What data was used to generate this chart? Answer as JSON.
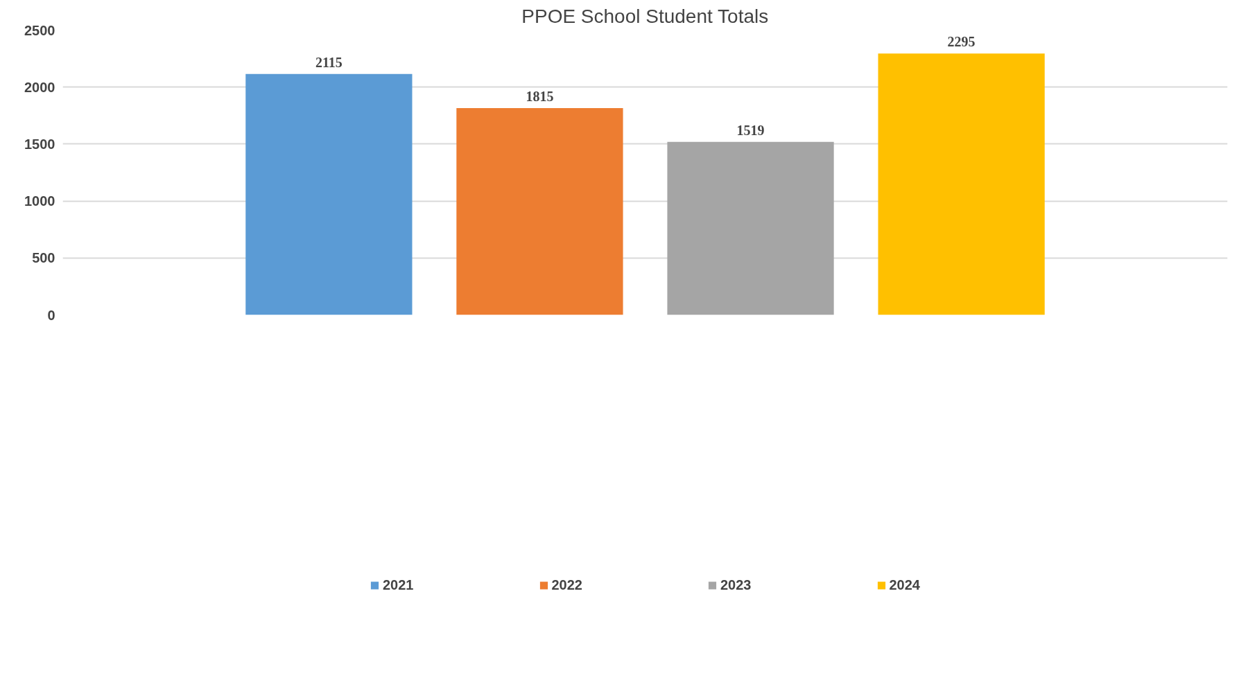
{
  "chart_data": {
    "type": "bar",
    "title": "PPOE School Student Totals",
    "categories": [
      null
    ],
    "series": [
      {
        "name": "2021",
        "color": "#5b9bd5",
        "values": [
          2115
        ]
      },
      {
        "name": "2022",
        "color": "#ed7d31",
        "values": [
          1815
        ]
      },
      {
        "name": "2023",
        "color": "#a5a5a5",
        "values": [
          1519
        ]
      },
      {
        "name": "2024",
        "color": "#ffc000",
        "values": [
          2295
        ]
      }
    ],
    "ylim": [
      0,
      2500
    ],
    "yticks": [
      0,
      500,
      1000,
      1500,
      2000,
      2500
    ],
    "grid": "y",
    "legend": "bottom",
    "data_labels": true
  }
}
